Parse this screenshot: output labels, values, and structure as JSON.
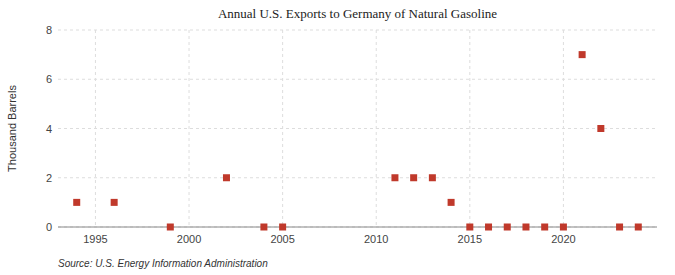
{
  "chart_data": {
    "type": "scatter",
    "title": "Annual U.S. Exports to Germany of Natural Gasoline",
    "ylabel": "Thousand Barrels",
    "source": "Source: U.S. Energy Information Administration",
    "x": [
      1994,
      1996,
      1999,
      2002,
      2004,
      2005,
      2011,
      2012,
      2013,
      2014,
      2015,
      2016,
      2017,
      2018,
      2019,
      2020,
      2021,
      2022,
      2023,
      2024
    ],
    "values": [
      1,
      1,
      0,
      2,
      0,
      0,
      2,
      2,
      2,
      1,
      0,
      0,
      0,
      0,
      0,
      0,
      7,
      4,
      0,
      0
    ],
    "color": "#c0392b",
    "marker": "square",
    "xlim": [
      1993,
      2025
    ],
    "ylim": [
      0,
      8
    ],
    "xticks": [
      1995,
      2000,
      2005,
      2010,
      2015,
      2020
    ],
    "yticks": [
      0,
      2,
      4,
      6,
      8
    ],
    "grid": true
  }
}
